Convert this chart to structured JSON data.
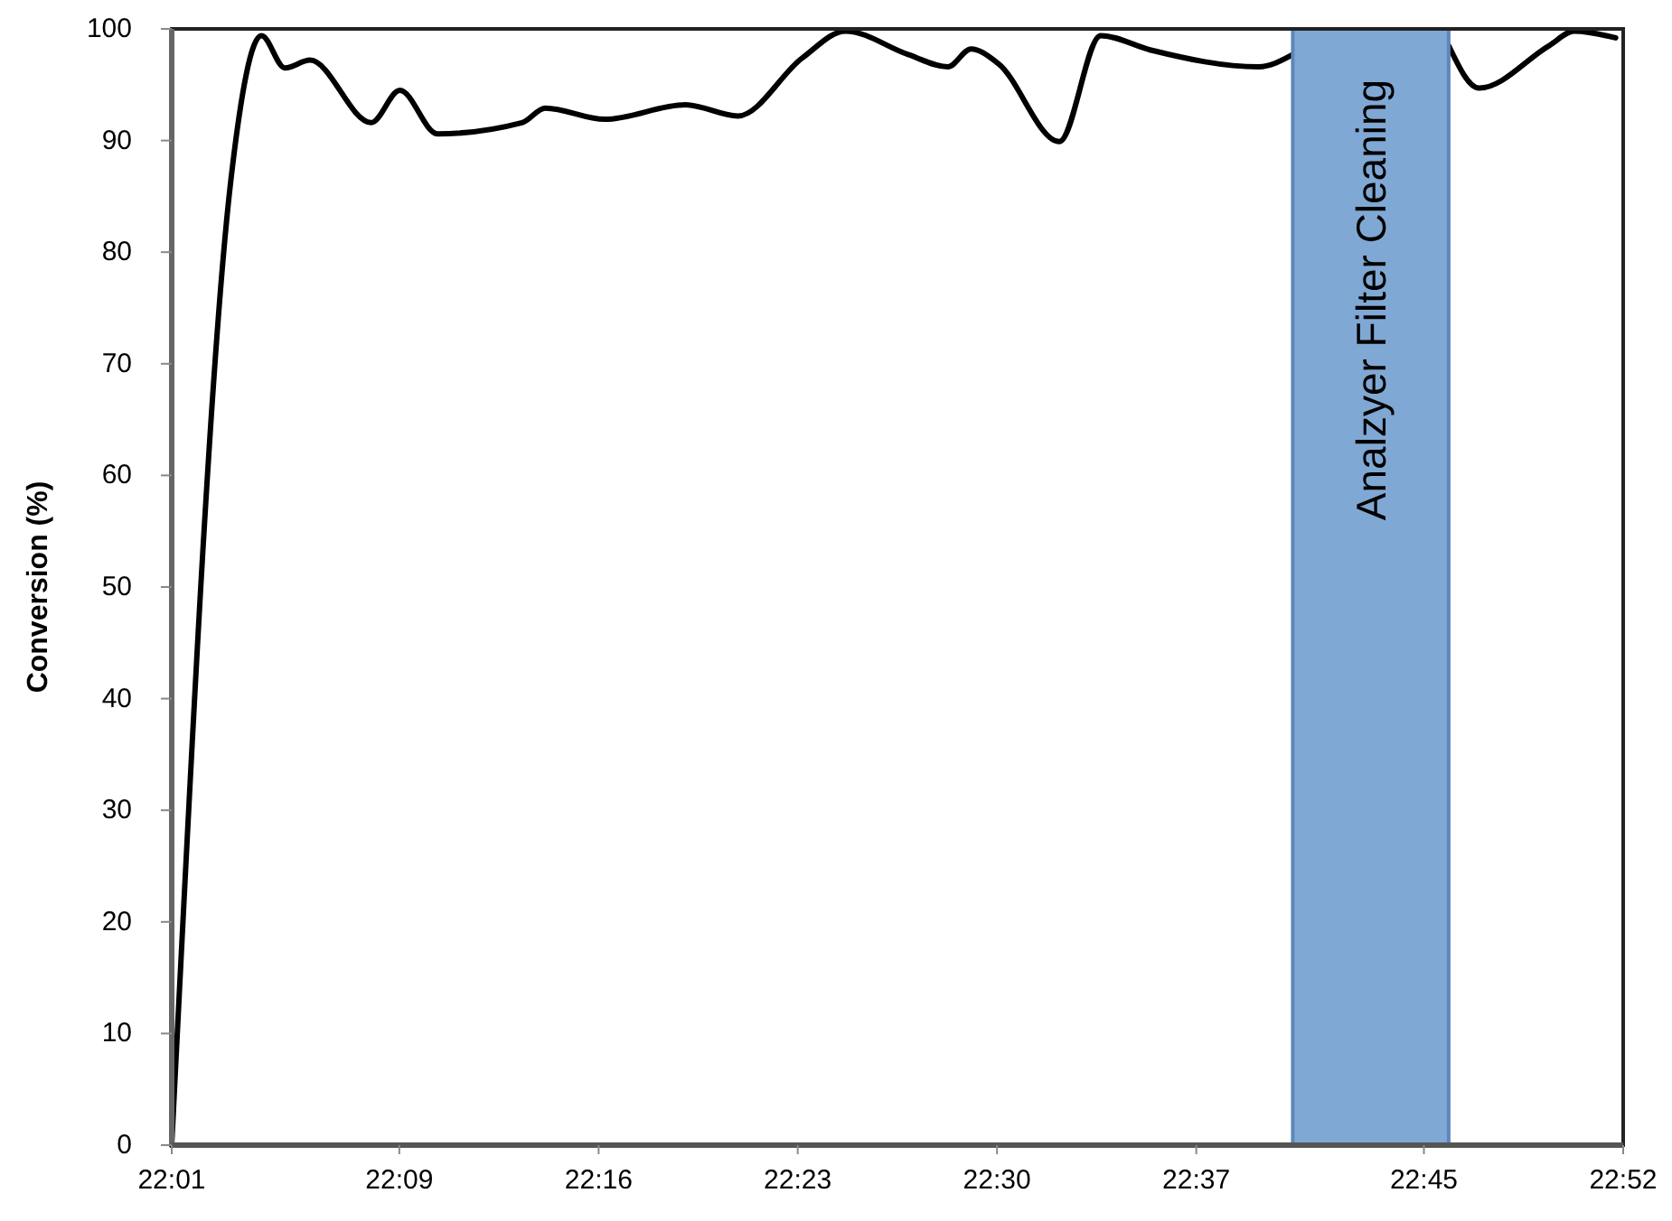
{
  "chart_data": {
    "type": "line",
    "ylabel": "Conversion (%)",
    "x": [
      22.0167,
      22.0513,
      22.0693,
      22.083,
      22.0977,
      22.1335,
      22.1503,
      22.1723,
      22.2218,
      22.2355,
      22.2702,
      22.3177,
      22.3482,
      22.386,
      22.4112,
      22.448,
      22.4712,
      22.4848,
      22.5007,
      22.5365,
      22.5607,
      22.5902,
      22.6532,
      22.6732,
      22.72,
      22.7645,
      22.7823,
      22.8233,
      22.838,
      22.8623
    ],
    "series": [
      {
        "color": "#000000",
        "values": [
          0,
          86.4,
          99.4,
          96.5,
          97.2,
          91.6,
          94.5,
          90.6,
          91.6,
          92.9,
          91.9,
          93.2,
          92.2,
          97.4,
          99.8,
          97.7,
          96.6,
          98.2,
          96.9,
          89.9,
          99.4,
          98.1,
          96.6,
          97.7,
          null,
          98.5,
          94.7,
          98.5,
          99.8,
          99.2
        ]
      }
    ],
    "xlim": [
      22.0167,
      22.8667
    ],
    "xticks": [
      {
        "value": 22.0167,
        "label": "22:01"
      },
      {
        "value": 22.15,
        "label": "22:09"
      },
      {
        "value": 22.2667,
        "label": "22:16"
      },
      {
        "value": 22.3833,
        "label": "22:23"
      },
      {
        "value": 22.5,
        "label": "22:30"
      },
      {
        "value": 22.6167,
        "label": "22:37"
      },
      {
        "value": 22.75,
        "label": "22:45"
      },
      {
        "value": 22.8667,
        "label": "22:52"
      }
    ],
    "ylim": [
      0,
      100
    ],
    "yticks": [
      0,
      10,
      20,
      30,
      40,
      50,
      60,
      70,
      80,
      90,
      100
    ],
    "grid": false,
    "marker": "none",
    "line_style": "solid",
    "bands": [
      {
        "axis": "x",
        "from": 22.6732,
        "to": 22.7645,
        "label": "Analzyer Filter Cleaning",
        "color": "#80a8d4"
      }
    ]
  }
}
